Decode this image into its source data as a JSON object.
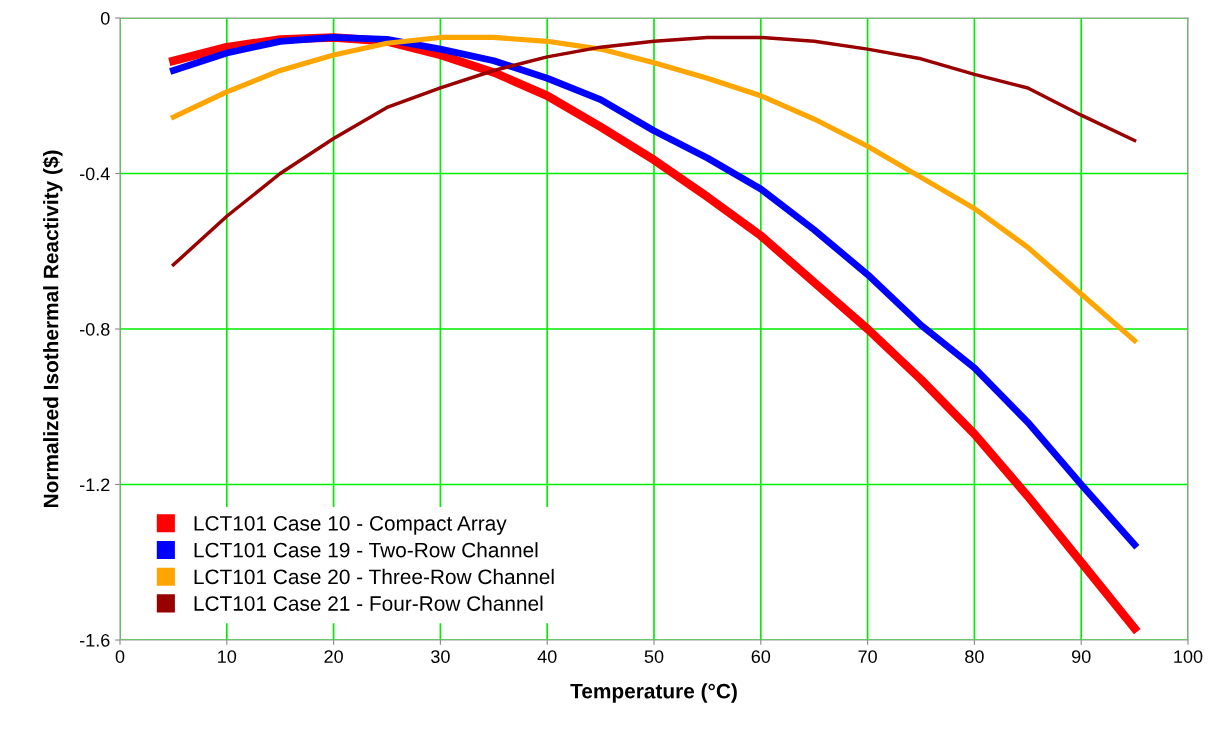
{
  "chart_data": {
    "type": "line",
    "xlabel": "Temperature (°C)",
    "ylabel": "Normalized Isothermal Reactivity ($)",
    "x": [
      5,
      10,
      15,
      20,
      25,
      30,
      35,
      40,
      45,
      50,
      55,
      60,
      65,
      70,
      75,
      80,
      85,
      90,
      95
    ],
    "xlim": [
      0,
      100
    ],
    "xticks": [
      0,
      10,
      20,
      30,
      40,
      50,
      60,
      70,
      80,
      90,
      100
    ],
    "ylim": [
      -1.6,
      0
    ],
    "yticks": [
      -1.6,
      -1.2,
      -0.8,
      -0.4,
      {
        "value": 0,
        "label": "0"
      }
    ],
    "grid": true,
    "legend": "bottom left",
    "marker": "none",
    "line_style": "solid",
    "series": [
      {
        "name": "LCT101 Case 10 - Compact Array",
        "color": "#ff0000",
        "values": [
          -0.11,
          -0.075,
          -0.055,
          -0.05,
          -0.06,
          -0.095,
          -0.14,
          -0.2,
          -0.28,
          -0.365,
          -0.46,
          -0.56,
          -0.68,
          -0.8,
          -0.93,
          -1.07,
          -1.23,
          -1.4,
          -1.57
        ]
      },
      {
        "name": "LCT101 Case 19 - Two-Row Channel",
        "color": "#0000ff",
        "values": [
          -0.135,
          -0.09,
          -0.06,
          -0.05,
          -0.055,
          -0.08,
          -0.11,
          -0.155,
          -0.21,
          -0.29,
          -0.36,
          -0.44,
          -0.545,
          -0.66,
          -0.79,
          -0.9,
          -1.04,
          -1.2,
          -1.355
        ]
      },
      {
        "name": "LCT101 Case 20 - Three-Row Channel",
        "color": "#ffa500",
        "values": [
          -0.255,
          -0.19,
          -0.135,
          -0.095,
          -0.065,
          -0.05,
          -0.05,
          -0.06,
          -0.08,
          -0.115,
          -0.155,
          -0.2,
          -0.26,
          -0.33,
          -0.41,
          -0.49,
          -0.59,
          -0.71,
          -0.83
        ]
      },
      {
        "name": "LCT101 Case 21 - Four-Row Channel",
        "color": "#990000",
        "values": [
          -0.635,
          -0.51,
          -0.4,
          -0.31,
          -0.23,
          -0.18,
          -0.135,
          -0.1,
          -0.075,
          -0.06,
          -0.05,
          -0.05,
          -0.06,
          -0.08,
          -0.105,
          -0.145,
          -0.18,
          -0.25,
          -0.315
        ]
      }
    ]
  }
}
